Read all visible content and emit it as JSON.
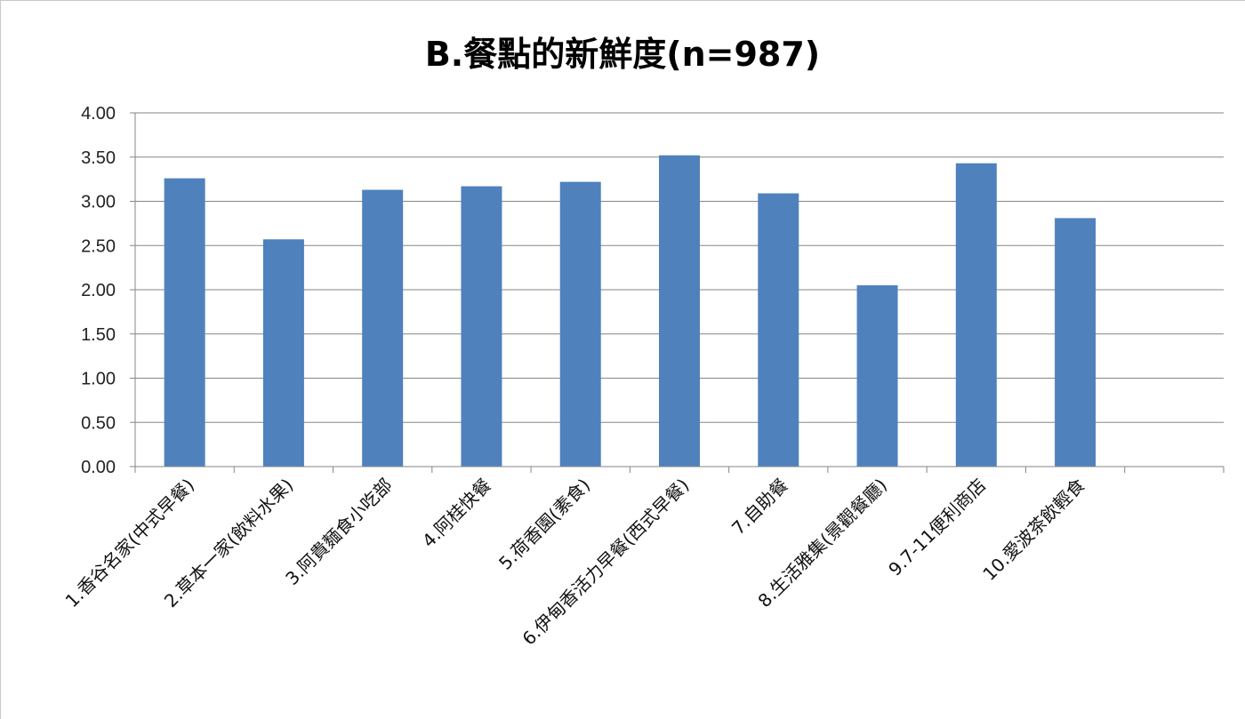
{
  "chart_data": {
    "type": "bar",
    "title": "B.餐點的新鮮度(n=987)",
    "xlabel": "",
    "ylabel": "",
    "categories": [
      "1.香谷名家(中式早餐)",
      "2.草本一家(飲料水果)",
      "3.阿貴麵食小吃部",
      "4.阿桂快餐",
      "5.荷香園(素食)",
      "6.伊甸香活力早餐(西式早餐)",
      "7.自助餐",
      "8.生活雅集(景觀餐廳)",
      "9.7-11便利商店",
      "10.愛波茶飲輕食"
    ],
    "values": [
      3.26,
      2.57,
      3.13,
      3.17,
      3.22,
      3.52,
      3.09,
      2.05,
      3.43,
      2.81
    ],
    "ylim": [
      0,
      4
    ],
    "yticks": [
      "0.00",
      "0.50",
      "1.00",
      "1.50",
      "2.00",
      "2.50",
      "3.00",
      "3.50",
      "4.00"
    ],
    "grid": true,
    "bar_color": "#4f81bd",
    "grid_color": "#868686"
  }
}
